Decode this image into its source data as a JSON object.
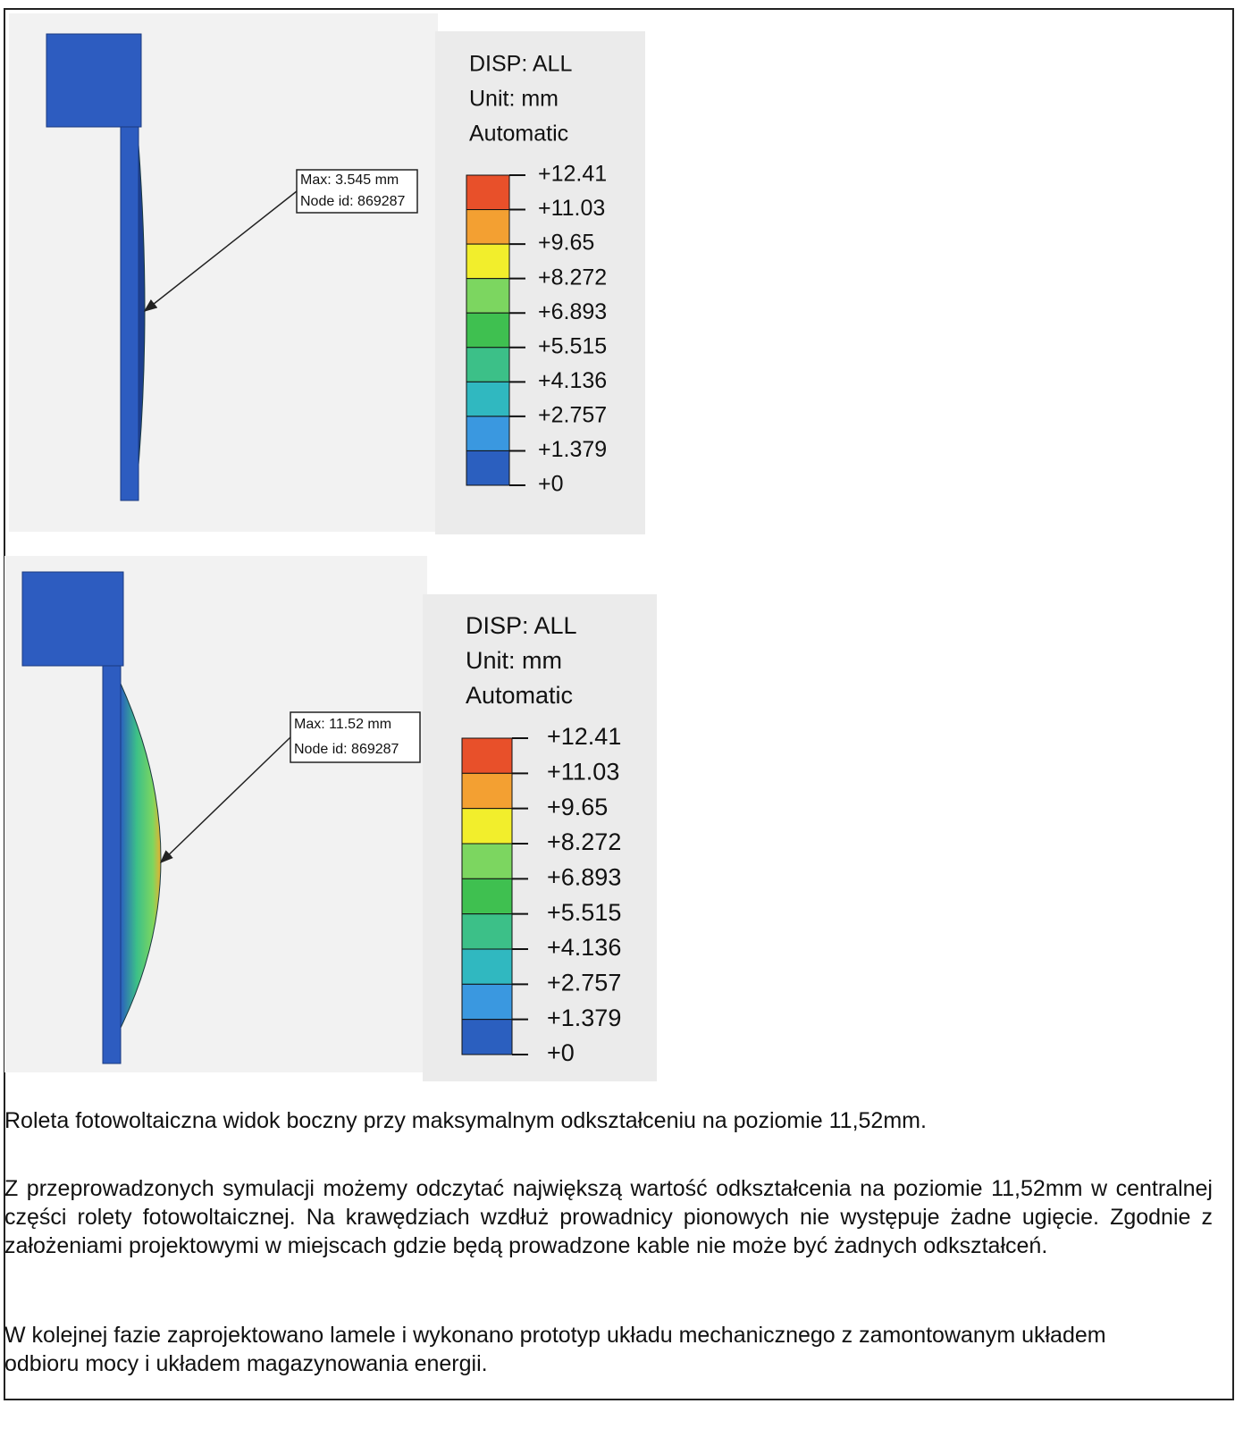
{
  "figures": [
    {
      "legend": {
        "title": [
          "DISP: ALL",
          "Unit: mm",
          "Automatic"
        ],
        "ticks": [
          "+12.41",
          "+11.03",
          "+9.65",
          "+8.272",
          "+6.893",
          "+5.515",
          "+4.136",
          "+2.757",
          "+1.379",
          "+0"
        ]
      },
      "annotation": [
        "Max: 3.545 mm",
        "Node id: 869287"
      ]
    },
    {
      "legend": {
        "title": [
          "DISP: ALL",
          "Unit: mm",
          "Automatic"
        ],
        "ticks": [
          "+12.41",
          "+11.03",
          "+9.65",
          "+8.272",
          "+6.893",
          "+5.515",
          "+4.136",
          "+2.757",
          "+1.379",
          "+0"
        ]
      },
      "annotation": [
        "Max: 11.52 mm",
        "Node id: 869287"
      ]
    }
  ],
  "caption": "Roleta fotowoltaiczna widok boczny przy maksymalnym odkształceniu na poziomie 11,52mm.",
  "paragraphs": [
    "Z przeprowadzonych symulacji możemy odczytać największą wartość odkształcenia na poziomie 11,52mm w centralnej części rolety fotowoltaicznej. Na krawędziach wzdłuż prowadnicy pionowych nie występuje żadne ugięcie. Zgodnie z założeniami projektowymi w miejscach gdzie będą prowadzone kable nie może być żadnych odkształceń.",
    "W kolejnej fazie zaprojektowano lamele i wykonano prototyp układu mechanicznego z zamontowanym układem odbioru mocy i układem magazynowania energii."
  ]
}
